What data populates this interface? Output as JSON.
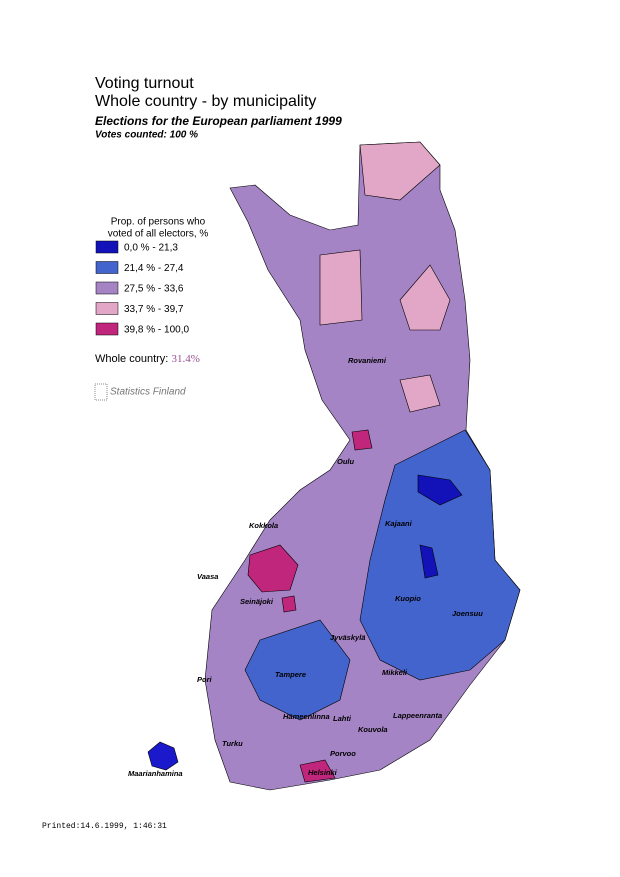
{
  "header": {
    "title": "Voting turnout",
    "subtitle": "Whole country - by municipality",
    "election": "Elections for the European parliament 1999",
    "counted": "Votes counted: 100 %"
  },
  "legend": {
    "title_lines": [
      "Prop. of persons who",
      "voted of all electors, %"
    ],
    "items": [
      {
        "label": "0,0 % - 21,3",
        "color": "#1212b8"
      },
      {
        "label": "21,4 % - 27,4",
        "color": "#4364cc"
      },
      {
        "label": "27,5 % - 33,6",
        "color": "#a584c6"
      },
      {
        "label": "33,7 % - 39,7",
        "color": "#e2a6c6"
      },
      {
        "label": "39,8 % - 100,0",
        "color": "#c0267c"
      }
    ]
  },
  "whole_country": {
    "label": "Whole country:",
    "value": "31.4%"
  },
  "logo": "Statistics Finland",
  "cities": [
    "Rovaniemi",
    "Oulu",
    "Kokkola",
    "Kajaani",
    "Vaasa",
    "Seinäjoki",
    "Kuopio",
    "Joensuu",
    "Jyväskylä",
    "Pori",
    "Tampere",
    "Mikkeli",
    "Hämeenlinna",
    "Lahti",
    "Lappeenranta",
    "Kouvola",
    "Turku",
    "Porvoo",
    "Helsinki",
    "Maarianhamina"
  ],
  "footer": "Printed:14.6.1999, 1:46:31"
}
